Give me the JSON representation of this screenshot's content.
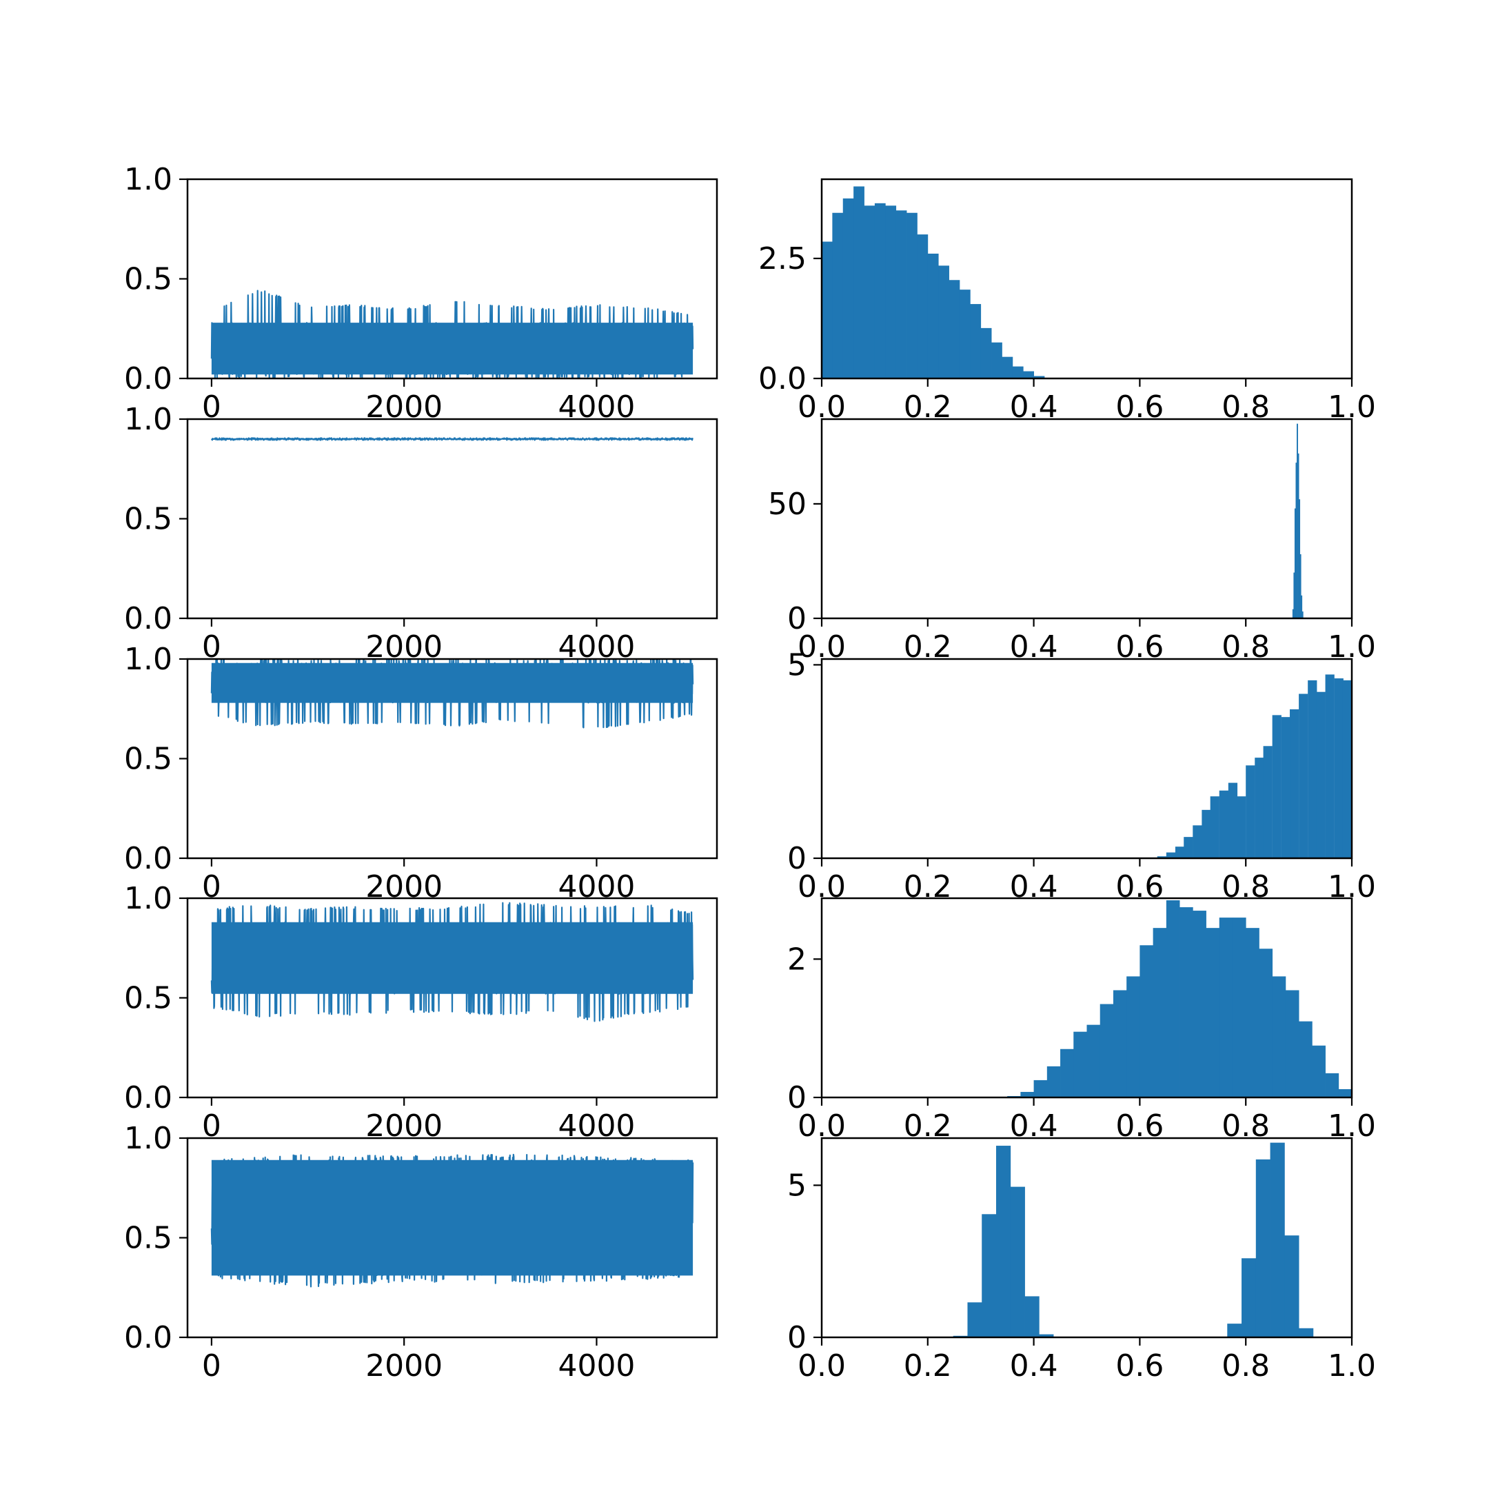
{
  "colors": {
    "series": "#1f77b4",
    "axes": "#000000",
    "background": "#ffffff"
  },
  "chart_data": [
    {
      "type": "line",
      "panel": "trace-1",
      "xlim": [
        -250,
        5250
      ],
      "ylim": [
        0,
        1
      ],
      "xticks": [
        0,
        2000,
        4000
      ],
      "xticklabels": [
        "0",
        "2000",
        "4000"
      ],
      "yticks": [
        0,
        0.5,
        1
      ],
      "yticklabels": [
        "0.0",
        "0.5",
        "1.0"
      ],
      "x_range": [
        0,
        5000
      ],
      "envelope": [
        {
          "x": 0,
          "lo": 0.0,
          "hi": 0.34
        },
        {
          "x": 500,
          "lo": 0.0,
          "hi": 0.45
        },
        {
          "x": 1000,
          "lo": 0.0,
          "hi": 0.36
        },
        {
          "x": 1500,
          "lo": 0.0,
          "hi": 0.37
        },
        {
          "x": 2000,
          "lo": 0.0,
          "hi": 0.35
        },
        {
          "x": 2500,
          "lo": 0.0,
          "hi": 0.39
        },
        {
          "x": 3000,
          "lo": 0.0,
          "hi": 0.37
        },
        {
          "x": 3500,
          "lo": 0.0,
          "hi": 0.35
        },
        {
          "x": 4000,
          "lo": 0.0,
          "hi": 0.37
        },
        {
          "x": 4500,
          "lo": 0.0,
          "hi": 0.36
        },
        {
          "x": 5000,
          "lo": 0.0,
          "hi": 0.32
        }
      ],
      "typical_band": [
        0.02,
        0.28
      ]
    },
    {
      "type": "bar",
      "panel": "hist-1",
      "xlim": [
        0,
        1
      ],
      "ylim": [
        0,
        4.15
      ],
      "xticks": [
        0,
        0.2,
        0.4,
        0.6,
        0.8,
        1.0
      ],
      "xticklabels": [
        "0.0",
        "0.2",
        "0.4",
        "0.6",
        "0.8",
        "1.0"
      ],
      "yticks": [
        0,
        2.5
      ],
      "yticklabels": [
        "0.0",
        "2.5"
      ],
      "bin_width": 0.02,
      "bins": [
        {
          "x": 0.0,
          "h": 2.85
        },
        {
          "x": 0.02,
          "h": 3.45
        },
        {
          "x": 0.04,
          "h": 3.75
        },
        {
          "x": 0.06,
          "h": 4.0
        },
        {
          "x": 0.08,
          "h": 3.6
        },
        {
          "x": 0.1,
          "h": 3.65
        },
        {
          "x": 0.12,
          "h": 3.6
        },
        {
          "x": 0.14,
          "h": 3.5
        },
        {
          "x": 0.16,
          "h": 3.45
        },
        {
          "x": 0.18,
          "h": 3.0
        },
        {
          "x": 0.2,
          "h": 2.6
        },
        {
          "x": 0.22,
          "h": 2.35
        },
        {
          "x": 0.24,
          "h": 2.05
        },
        {
          "x": 0.26,
          "h": 1.85
        },
        {
          "x": 0.28,
          "h": 1.55
        },
        {
          "x": 0.3,
          "h": 1.05
        },
        {
          "x": 0.32,
          "h": 0.75
        },
        {
          "x": 0.34,
          "h": 0.45
        },
        {
          "x": 0.36,
          "h": 0.25
        },
        {
          "x": 0.38,
          "h": 0.15
        },
        {
          "x": 0.4,
          "h": 0.05
        }
      ]
    },
    {
      "type": "line",
      "panel": "trace-2",
      "xlim": [
        -250,
        5250
      ],
      "ylim": [
        0,
        1
      ],
      "xticks": [
        0,
        2000,
        4000
      ],
      "xticklabels": [
        "0",
        "2000",
        "4000"
      ],
      "yticks": [
        0,
        0.5,
        1
      ],
      "yticklabels": [
        "0.0",
        "0.5",
        "1.0"
      ],
      "x_range": [
        0,
        5000
      ],
      "envelope": [
        {
          "x": 0,
          "lo": 0.895,
          "hi": 0.905
        },
        {
          "x": 2500,
          "lo": 0.895,
          "hi": 0.905
        },
        {
          "x": 5000,
          "lo": 0.895,
          "hi": 0.905
        }
      ],
      "typical_band": [
        0.897,
        0.903
      ]
    },
    {
      "type": "bar",
      "panel": "hist-2",
      "xlim": [
        0,
        1
      ],
      "ylim": [
        0,
        87
      ],
      "xticks": [
        0,
        0.2,
        0.4,
        0.6,
        0.8,
        1.0
      ],
      "xticklabels": [
        "0.0",
        "0.2",
        "0.4",
        "0.6",
        "0.8",
        "1.0"
      ],
      "yticks": [
        0,
        50
      ],
      "yticklabels": [
        "0",
        "50"
      ],
      "bin_width": 0.002,
      "bins": [
        {
          "x": 0.888,
          "h": 4
        },
        {
          "x": 0.89,
          "h": 20
        },
        {
          "x": 0.892,
          "h": 48
        },
        {
          "x": 0.894,
          "h": 68
        },
        {
          "x": 0.896,
          "h": 85
        },
        {
          "x": 0.898,
          "h": 72
        },
        {
          "x": 0.9,
          "h": 52
        },
        {
          "x": 0.902,
          "h": 28
        },
        {
          "x": 0.904,
          "h": 10
        },
        {
          "x": 0.906,
          "h": 3
        }
      ]
    },
    {
      "type": "line",
      "panel": "trace-3",
      "xlim": [
        -250,
        5250
      ],
      "ylim": [
        0,
        1
      ],
      "xticks": [
        0,
        2000,
        4000
      ],
      "xticklabels": [
        "0",
        "2000",
        "4000"
      ],
      "yticks": [
        0,
        0.5,
        1
      ],
      "yticklabels": [
        "0.0",
        "0.5",
        "1.0"
      ],
      "x_range": [
        0,
        5000
      ],
      "envelope": [
        {
          "x": 0,
          "lo": 0.72,
          "hi": 1.0
        },
        {
          "x": 500,
          "lo": 0.66,
          "hi": 1.0
        },
        {
          "x": 1000,
          "lo": 0.68,
          "hi": 1.0
        },
        {
          "x": 1500,
          "lo": 0.67,
          "hi": 1.0
        },
        {
          "x": 2000,
          "lo": 0.68,
          "hi": 1.0
        },
        {
          "x": 2500,
          "lo": 0.66,
          "hi": 1.0
        },
        {
          "x": 3000,
          "lo": 0.69,
          "hi": 1.0
        },
        {
          "x": 3500,
          "lo": 0.67,
          "hi": 1.0
        },
        {
          "x": 4000,
          "lo": 0.65,
          "hi": 1.0
        },
        {
          "x": 4500,
          "lo": 0.68,
          "hi": 1.0
        },
        {
          "x": 5000,
          "lo": 0.72,
          "hi": 1.0
        }
      ],
      "typical_band": [
        0.78,
        0.98
      ]
    },
    {
      "type": "bar",
      "panel": "hist-3",
      "xlim": [
        0,
        1
      ],
      "ylim": [
        0,
        5.15
      ],
      "xticks": [
        0,
        0.2,
        0.4,
        0.6,
        0.8,
        1.0
      ],
      "xticklabels": [
        "0.0",
        "0.2",
        "0.4",
        "0.6",
        "0.8",
        "1.0"
      ],
      "yticks": [
        0,
        5
      ],
      "yticklabels": [
        "0",
        "5"
      ],
      "bin_width": 0.0167,
      "bins": [
        {
          "x": 0.633,
          "h": 0.05
        },
        {
          "x": 0.65,
          "h": 0.15
        },
        {
          "x": 0.667,
          "h": 0.3
        },
        {
          "x": 0.683,
          "h": 0.55
        },
        {
          "x": 0.7,
          "h": 0.85
        },
        {
          "x": 0.717,
          "h": 1.25
        },
        {
          "x": 0.733,
          "h": 1.6
        },
        {
          "x": 0.75,
          "h": 1.75
        },
        {
          "x": 0.767,
          "h": 1.95
        },
        {
          "x": 0.783,
          "h": 1.6
        },
        {
          "x": 0.8,
          "h": 2.4
        },
        {
          "x": 0.817,
          "h": 2.6
        },
        {
          "x": 0.833,
          "h": 2.9
        },
        {
          "x": 0.85,
          "h": 3.7
        },
        {
          "x": 0.867,
          "h": 3.65
        },
        {
          "x": 0.883,
          "h": 3.85
        },
        {
          "x": 0.9,
          "h": 4.25
        },
        {
          "x": 0.917,
          "h": 4.6
        },
        {
          "x": 0.933,
          "h": 4.3
        },
        {
          "x": 0.95,
          "h": 4.75
        },
        {
          "x": 0.967,
          "h": 4.65
        },
        {
          "x": 0.983,
          "h": 4.6
        }
      ]
    },
    {
      "type": "line",
      "panel": "trace-4",
      "xlim": [
        -250,
        5250
      ],
      "ylim": [
        0,
        1
      ],
      "xticks": [
        0,
        2000,
        4000
      ],
      "xticklabels": [
        "0",
        "2000",
        "4000"
      ],
      "yticks": [
        0,
        0.5,
        1
      ],
      "yticklabels": [
        "0.0",
        "0.5",
        "1.0"
      ],
      "x_range": [
        0,
        5000
      ],
      "envelope": [
        {
          "x": 0,
          "lo": 0.45,
          "hi": 0.95
        },
        {
          "x": 500,
          "lo": 0.4,
          "hi": 0.97
        },
        {
          "x": 1000,
          "lo": 0.42,
          "hi": 0.95
        },
        {
          "x": 1500,
          "lo": 0.41,
          "hi": 0.96
        },
        {
          "x": 2000,
          "lo": 0.43,
          "hi": 0.95
        },
        {
          "x": 2500,
          "lo": 0.42,
          "hi": 0.96
        },
        {
          "x": 3000,
          "lo": 0.41,
          "hi": 0.98
        },
        {
          "x": 3500,
          "lo": 0.43,
          "hi": 0.97
        },
        {
          "x": 4000,
          "lo": 0.38,
          "hi": 0.96
        },
        {
          "x": 4500,
          "lo": 0.42,
          "hi": 0.97
        },
        {
          "x": 5000,
          "lo": 0.45,
          "hi": 0.93
        }
      ],
      "typical_band": [
        0.52,
        0.88
      ]
    },
    {
      "type": "bar",
      "panel": "hist-4",
      "xlim": [
        0,
        1
      ],
      "ylim": [
        0,
        2.88
      ],
      "xticks": [
        0,
        0.2,
        0.4,
        0.6,
        0.8,
        1.0
      ],
      "xticklabels": [
        "0.0",
        "0.2",
        "0.4",
        "0.6",
        "0.8",
        "1.0"
      ],
      "yticks": [
        0,
        2
      ],
      "yticklabels": [
        "0",
        "2"
      ],
      "bin_width": 0.025,
      "bins": [
        {
          "x": 0.35,
          "h": 0.02
        },
        {
          "x": 0.375,
          "h": 0.08
        },
        {
          "x": 0.4,
          "h": 0.25
        },
        {
          "x": 0.425,
          "h": 0.45
        },
        {
          "x": 0.45,
          "h": 0.7
        },
        {
          "x": 0.475,
          "h": 0.95
        },
        {
          "x": 0.5,
          "h": 1.05
        },
        {
          "x": 0.525,
          "h": 1.35
        },
        {
          "x": 0.55,
          "h": 1.55
        },
        {
          "x": 0.575,
          "h": 1.75
        },
        {
          "x": 0.6,
          "h": 2.2
        },
        {
          "x": 0.625,
          "h": 2.45
        },
        {
          "x": 0.65,
          "h": 2.85
        },
        {
          "x": 0.675,
          "h": 2.75
        },
        {
          "x": 0.7,
          "h": 2.7
        },
        {
          "x": 0.725,
          "h": 2.45
        },
        {
          "x": 0.75,
          "h": 2.6
        },
        {
          "x": 0.775,
          "h": 2.6
        },
        {
          "x": 0.8,
          "h": 2.45
        },
        {
          "x": 0.825,
          "h": 2.15
        },
        {
          "x": 0.85,
          "h": 1.75
        },
        {
          "x": 0.875,
          "h": 1.55
        },
        {
          "x": 0.9,
          "h": 1.1
        },
        {
          "x": 0.925,
          "h": 0.75
        },
        {
          "x": 0.95,
          "h": 0.35
        },
        {
          "x": 0.975,
          "h": 0.12
        }
      ]
    },
    {
      "type": "line",
      "panel": "trace-5",
      "xlim": [
        -250,
        5250
      ],
      "ylim": [
        0,
        1
      ],
      "xticks": [
        0,
        2000,
        4000
      ],
      "xticklabels": [
        "0",
        "2000",
        "4000"
      ],
      "yticks": [
        0,
        0.5,
        1
      ],
      "yticklabels": [
        "0.0",
        "0.5",
        "1.0"
      ],
      "x_range": [
        0,
        5000
      ],
      "envelope": [
        {
          "x": 0,
          "lo": 0.3,
          "hi": 0.89
        },
        {
          "x": 1000,
          "lo": 0.25,
          "hi": 0.92
        },
        {
          "x": 2000,
          "lo": 0.28,
          "hi": 0.91
        },
        {
          "x": 3000,
          "lo": 0.27,
          "hi": 0.92
        },
        {
          "x": 4000,
          "lo": 0.28,
          "hi": 0.91
        },
        {
          "x": 5000,
          "lo": 0.3,
          "hi": 0.89
        }
      ],
      "typical_band": [
        0.31,
        0.89
      ]
    },
    {
      "type": "bar",
      "panel": "hist-5",
      "xlim": [
        0,
        1
      ],
      "ylim": [
        0,
        6.55
      ],
      "xticks": [
        0,
        0.2,
        0.4,
        0.6,
        0.8,
        1.0
      ],
      "xticklabels": [
        "0.0",
        "0.2",
        "0.4",
        "0.6",
        "0.8",
        "1.0"
      ],
      "yticks": [
        0,
        5
      ],
      "yticklabels": [
        "0",
        "5"
      ],
      "bin_width": 0.027,
      "bins": [
        {
          "x": 0.248,
          "h": 0.05
        },
        {
          "x": 0.275,
          "h": 1.15
        },
        {
          "x": 0.302,
          "h": 4.05
        },
        {
          "x": 0.329,
          "h": 6.3
        },
        {
          "x": 0.356,
          "h": 4.95
        },
        {
          "x": 0.383,
          "h": 1.35
        },
        {
          "x": 0.41,
          "h": 0.1
        },
        {
          "x": 0.765,
          "h": 0.45
        },
        {
          "x": 0.792,
          "h": 2.6
        },
        {
          "x": 0.819,
          "h": 5.85
        },
        {
          "x": 0.846,
          "h": 6.4
        },
        {
          "x": 0.873,
          "h": 3.35
        },
        {
          "x": 0.9,
          "h": 0.3
        }
      ]
    }
  ]
}
